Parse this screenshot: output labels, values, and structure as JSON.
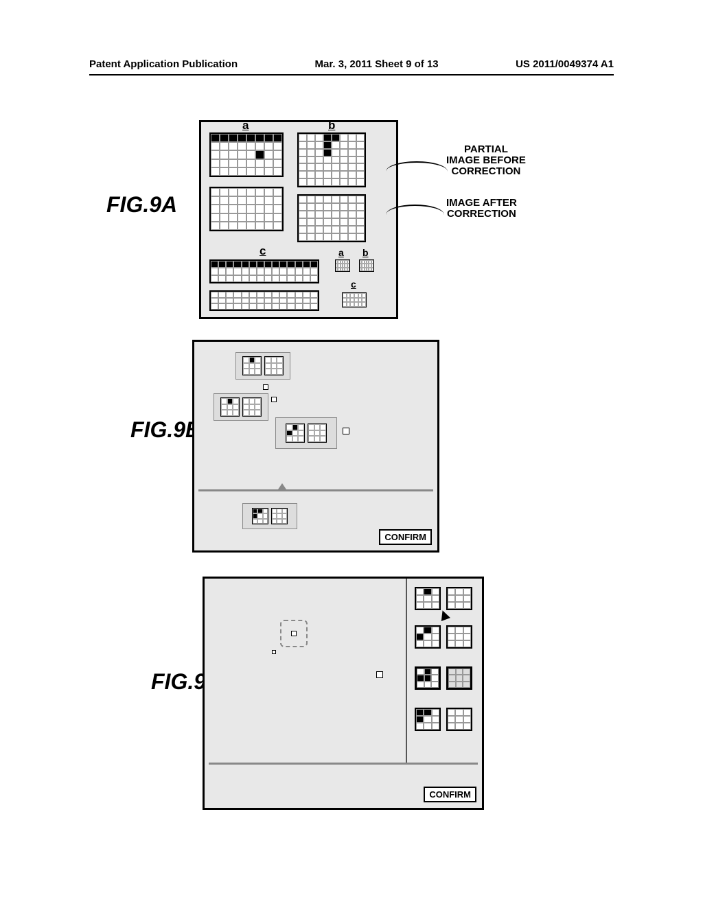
{
  "header": {
    "left": "Patent Application Publication",
    "center": "Mar. 3, 2011  Sheet 9 of 13",
    "right": "US 2011/0049374 A1"
  },
  "figs": {
    "a": "FIG.9A",
    "b": "FIG.9B",
    "c": "FIG.9C"
  },
  "annotations": {
    "before": "PARTIAL\nIMAGE BEFORE\nCORRECTION",
    "after": "IMAGE AFTER\nCORRECTION"
  },
  "letters": {
    "a": "a",
    "b": "b",
    "c": "c"
  },
  "confirm": "CONFIRM",
  "colors": {
    "panel_bg": "#e8e8e8",
    "border": "#000000",
    "grid_line": "#999999",
    "fill": "#000000"
  },
  "panelA": {
    "grids": {
      "a_top": {
        "cols": 8,
        "rows": 5,
        "dark": [
          [
            2,
            5
          ]
        ],
        "darkRow": 0
      },
      "a_bot": {
        "cols": 8,
        "rows": 5,
        "dark": [],
        "darkRow": null
      },
      "b_top": {
        "cols": 8,
        "rows": 7,
        "dark": [
          [
            0,
            3
          ],
          [
            1,
            3
          ],
          [
            2,
            3
          ],
          [
            0,
            4
          ]
        ],
        "darkRow": null
      },
      "b_bot": {
        "cols": 8,
        "rows": 6,
        "dark": [],
        "darkRow": null
      },
      "c_top": {
        "cols": 14,
        "rows": 3,
        "dark": [],
        "darkRow": 0
      },
      "c_bot": {
        "cols": 14,
        "rows": 3,
        "dark": [],
        "darkRow": null
      }
    },
    "mini": {
      "a": true,
      "b": true,
      "c": true
    }
  }
}
